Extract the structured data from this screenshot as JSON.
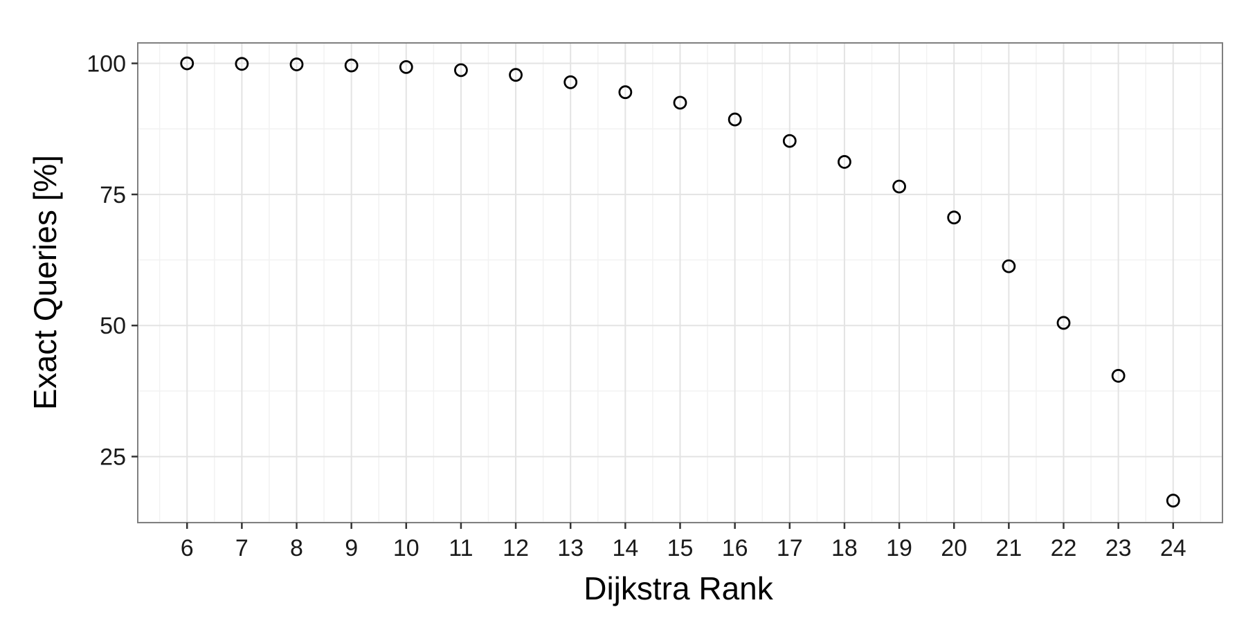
{
  "chart_data": {
    "type": "scatter",
    "x": [
      6,
      7,
      8,
      9,
      10,
      11,
      12,
      13,
      14,
      15,
      16,
      17,
      18,
      19,
      20,
      21,
      22,
      23,
      24
    ],
    "y": [
      100.0,
      99.9,
      99.8,
      99.6,
      99.3,
      98.7,
      97.8,
      96.4,
      94.5,
      92.5,
      89.3,
      85.2,
      81.2,
      76.5,
      70.6,
      61.3,
      50.5,
      40.4,
      16.6
    ],
    "title": "",
    "xlabel": "Dijkstra Rank",
    "ylabel": "Exact Queries [%]",
    "xticks": [
      6,
      7,
      8,
      9,
      10,
      11,
      12,
      13,
      14,
      15,
      16,
      17,
      18,
      19,
      20,
      21,
      22,
      23,
      24
    ],
    "yticks": [
      25,
      50,
      75,
      100
    ],
    "xlim": [
      5.1,
      24.9
    ],
    "ylim": [
      12.4,
      103.9
    ],
    "grid": true,
    "marker": "open-circle",
    "colors": {
      "panel_border": "#7f7f7f",
      "grid_major": "#e3e3e3",
      "grid_minor": "#f2f2f2",
      "point_stroke": "#000000"
    }
  }
}
